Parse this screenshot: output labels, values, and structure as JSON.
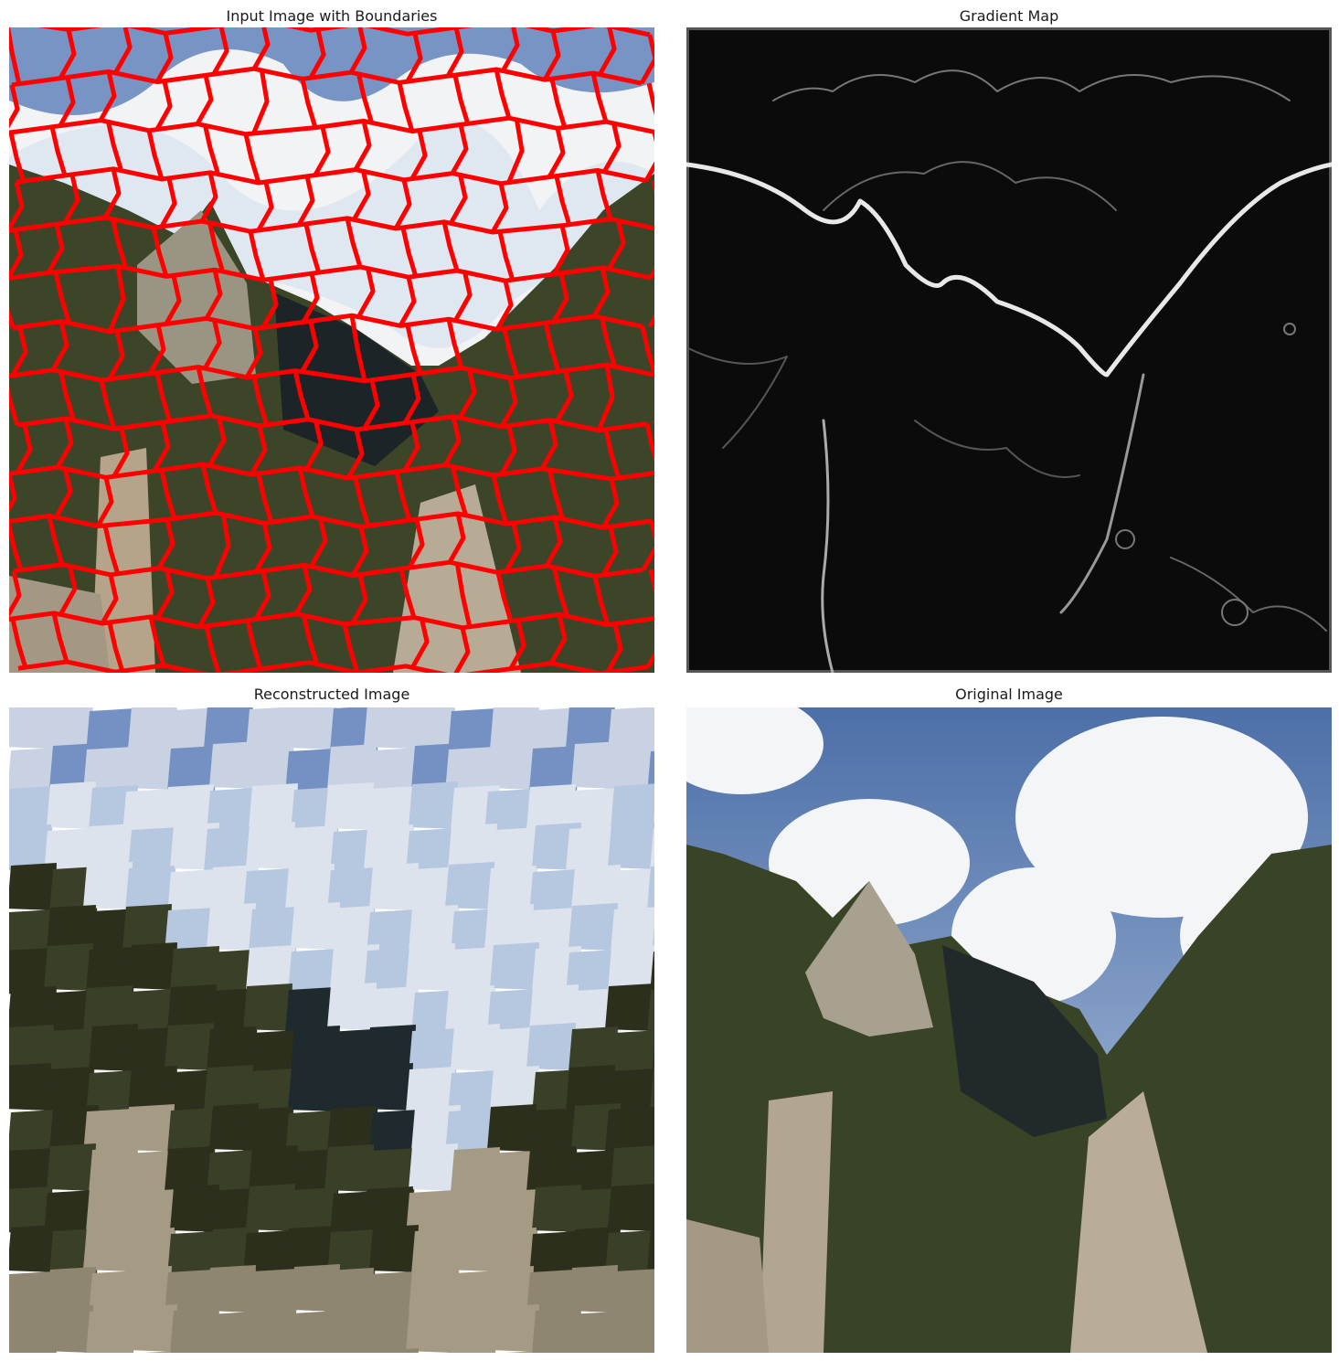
{
  "figure": {
    "panels": [
      {
        "id": "boundaries",
        "title": "Input Image with Boundaries"
      },
      {
        "id": "gradient",
        "title": "Gradient Map"
      },
      {
        "id": "reconstructed",
        "title": "Reconstructed Image"
      },
      {
        "id": "original",
        "title": "Original Image"
      }
    ],
    "colors": {
      "boundary": "#ff0000",
      "sky": "#6f8fc0",
      "cloud": "#f0f2f5",
      "vegetation": "#2f3a1f",
      "rock": "#a39a88",
      "gradient_bg": "#0b0b0b",
      "gradient_edge": "#e6e6e6"
    }
  }
}
